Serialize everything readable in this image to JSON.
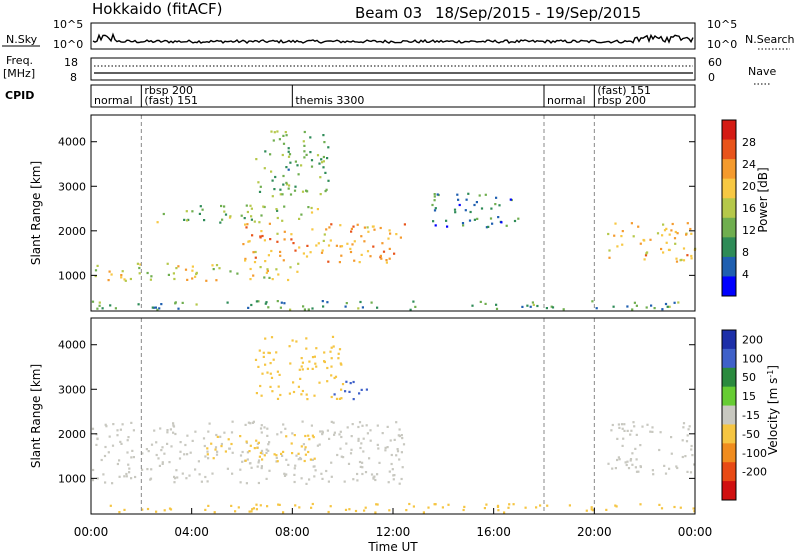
{
  "header": {
    "station": "Hokkaido (fitACF)",
    "beam": "Beam 03",
    "date_range": "18/Sep/2015 - 19/Sep/2015"
  },
  "noise_panel": {
    "left_label": "N.Sky",
    "right_label": "N.Search",
    "tick_top": "10^5",
    "tick_bottom": "10^0",
    "right_tick_top": "10^5",
    "right_tick_bottom": "10^0"
  },
  "freq_panel": {
    "left_label_top": "Freq.",
    "left_label_bottom": "[MHz]",
    "left_tick_top": "18",
    "left_tick_bottom": "8",
    "right_label": "Nave",
    "right_tick_top": "60",
    "right_tick_bottom": "0"
  },
  "cpid_panel": {
    "label": "CPID",
    "segments": [
      {
        "start_h": 0,
        "text_top": "",
        "text_bottom": "normal"
      },
      {
        "start_h": 2,
        "text_top": "rbsp 200",
        "text_bottom": "(fast) 151"
      },
      {
        "start_h": 8,
        "text_top": "",
        "text_bottom": "themis 3300"
      },
      {
        "start_h": 18,
        "text_top": "",
        "text_bottom": "normal"
      },
      {
        "start_h": 20,
        "text_top": "(fast) 151",
        "text_bottom": "rbsp 200"
      }
    ]
  },
  "chart_data": [
    {
      "type": "heatmap",
      "name": "power",
      "ylabel": "Slant Range [km]",
      "ylim": [
        200,
        4600
      ],
      "yticks": [
        1000,
        2000,
        3000,
        4000
      ],
      "xlim": [
        0,
        24
      ],
      "colorbar": {
        "label": "Power [dB]",
        "ticks": [
          4,
          8,
          12,
          16,
          20,
          24,
          28
        ],
        "range": [
          0,
          32
        ],
        "colors": [
          "#0000ff",
          "#1f5fb0",
          "#2e8b57",
          "#6fae4f",
          "#b5c84a",
          "#f7c843",
          "#f49a2d",
          "#e8541b",
          "#d41b14"
        ]
      },
      "regions": [
        {
          "x": [
            0.0,
            8.5
          ],
          "r": [
            900,
            1300
          ],
          "level": 18
        },
        {
          "x": [
            6.0,
            12.5
          ],
          "r": [
            1300,
            2200
          ],
          "level": 22
        },
        {
          "x": [
            2.5,
            9.0
          ],
          "r": [
            2200,
            2600
          ],
          "level": 14
        },
        {
          "x": [
            6.5,
            9.5
          ],
          "r": [
            2800,
            4300
          ],
          "level": 12
        },
        {
          "x": [
            13.5,
            17.0
          ],
          "r": [
            2100,
            2900
          ],
          "level": 8
        },
        {
          "x": [
            20.5,
            24.0
          ],
          "r": [
            1300,
            2200
          ],
          "level": 20
        },
        {
          "x": [
            0.0,
            24.0
          ],
          "r": [
            250,
            450
          ],
          "level": 10
        }
      ]
    },
    {
      "type": "heatmap",
      "name": "velocity",
      "ylabel": "Slant Range [km]",
      "xlabel": "Time UT",
      "ylim": [
        200,
        4600
      ],
      "yticks": [
        1000,
        2000,
        3000,
        4000
      ],
      "xlim": [
        0,
        24
      ],
      "xticks": [
        "00:00",
        "04:00",
        "08:00",
        "12:00",
        "16:00",
        "20:00",
        "00:00"
      ],
      "colorbar": {
        "label": "Velocity [m s^-1]",
        "ticks": [
          200,
          100,
          50,
          15,
          -15,
          -50,
          -100,
          -200
        ],
        "colors": [
          "#1c2fa8",
          "#3f61c9",
          "#2a8a3e",
          "#66cc33",
          "#c8c8c0",
          "#f5c542",
          "#f08c1e",
          "#e84a15",
          "#d01010"
        ]
      },
      "regions": [
        {
          "x": [
            0.0,
            12.5
          ],
          "r": [
            900,
            2300
          ],
          "level": 0
        },
        {
          "x": [
            4.5,
            9.0
          ],
          "r": [
            1400,
            2000
          ],
          "level": -30
        },
        {
          "x": [
            6.5,
            10.0
          ],
          "r": [
            2800,
            4200
          ],
          "level": -40
        },
        {
          "x": [
            9.5,
            11.0
          ],
          "r": [
            2800,
            3200
          ],
          "level": 180
        },
        {
          "x": [
            20.5,
            24.0
          ],
          "r": [
            1100,
            2300
          ],
          "level": 0
        },
        {
          "x": [
            0.0,
            24.0
          ],
          "r": [
            250,
            450
          ],
          "level": -40
        }
      ]
    }
  ]
}
